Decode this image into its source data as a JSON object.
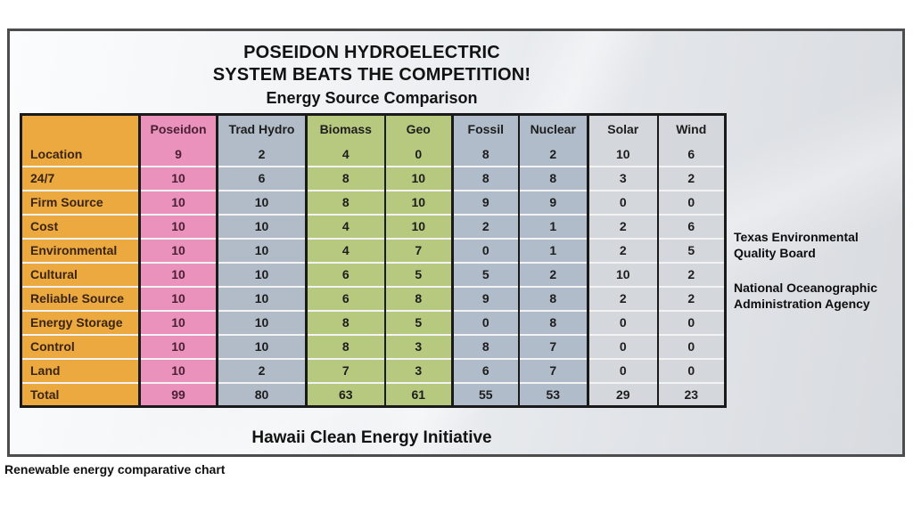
{
  "slide": {
    "title_line1": "POSEIDON HYDROELECTRIC",
    "title_line2": "SYSTEM BEATS THE COMPETITION!",
    "subtitle": "Energy Source Comparison",
    "footer": "Hawaii Clean Energy Initiative",
    "side_notes": [
      "Texas Environmental Quality Board",
      "National Oceanographic Administration Agency"
    ]
  },
  "caption": "Renewable energy comparative chart",
  "chart_data": {
    "type": "table",
    "title": "POSEIDON HYDROELECTRIC SYSTEM BEATS THE COMPETITION!",
    "subtitle": "Energy Source Comparison",
    "columns": [
      "",
      "Poseidon",
      "Trad Hydro",
      "Biomass",
      "Geo",
      "Fossil",
      "Nuclear",
      "Solar",
      "Wind"
    ],
    "rows": [
      {
        "label": "Location",
        "values": [
          9,
          2,
          4,
          0,
          8,
          2,
          10,
          6
        ]
      },
      {
        "label": "24/7",
        "values": [
          10,
          6,
          8,
          10,
          8,
          8,
          3,
          2
        ]
      },
      {
        "label": "Firm Source",
        "values": [
          10,
          10,
          8,
          10,
          9,
          9,
          0,
          0
        ]
      },
      {
        "label": "Cost",
        "values": [
          10,
          10,
          4,
          10,
          2,
          1,
          2,
          6
        ]
      },
      {
        "label": "Environmental",
        "values": [
          10,
          10,
          4,
          7,
          0,
          1,
          2,
          5
        ]
      },
      {
        "label": "Cultural",
        "values": [
          10,
          10,
          6,
          5,
          5,
          2,
          10,
          2
        ]
      },
      {
        "label": "Reliable Source",
        "values": [
          10,
          10,
          6,
          8,
          9,
          8,
          2,
          2
        ]
      },
      {
        "label": "Energy Storage",
        "values": [
          10,
          10,
          8,
          5,
          0,
          8,
          0,
          0
        ]
      },
      {
        "label": "Control",
        "values": [
          10,
          10,
          8,
          3,
          8,
          7,
          0,
          0
        ]
      },
      {
        "label": "Land",
        "values": [
          10,
          2,
          7,
          3,
          6,
          7,
          0,
          0
        ]
      },
      {
        "label": "Total",
        "values": [
          99,
          80,
          63,
          61,
          55,
          53,
          29,
          23
        ]
      }
    ]
  },
  "colors": {
    "columns": [
      "#eca93f",
      "#ea92bc",
      "#b2bcc8",
      "#b7c97e",
      "#b7c97e",
      "#b0bcc9",
      "#b0bcc9",
      "#d4d8dc",
      "#d4d8dc"
    ],
    "table_border": "#1a1a1a",
    "row_separator": "#f2f3f2",
    "slide_border": "#4d4d4d"
  }
}
